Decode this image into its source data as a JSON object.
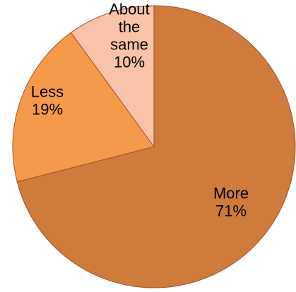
{
  "chart_data": {
    "type": "pie",
    "slices": [
      {
        "name": "More",
        "value": 71,
        "label_lines": [
          "More",
          "71%"
        ],
        "color": "#CE7B3C"
      },
      {
        "name": "Less",
        "value": 19,
        "label_lines": [
          "Less",
          "19%"
        ],
        "color": "#F59A4A"
      },
      {
        "name": "About the same",
        "value": 10,
        "label_lines": [
          "About",
          "the",
          "same",
          "10%"
        ],
        "color": "#F8C3A8"
      }
    ],
    "start": "12 o'clock",
    "direction": "clockwise",
    "slice_border_color": "#a0522d",
    "legend": "none"
  }
}
